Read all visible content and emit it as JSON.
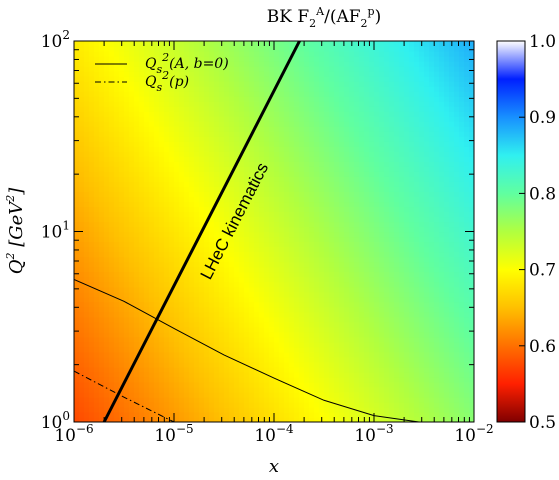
{
  "chart_data": {
    "type": "heatmap",
    "title": "BK F_2^A/(AF_2^p)",
    "xlabel": "x",
    "ylabel": "Q^2 [GeV^2]",
    "x_scale": "log",
    "y_scale": "log",
    "xlim": [
      1e-06,
      0.01
    ],
    "ylim": [
      1,
      100
    ],
    "x_ticks": [
      {
        "value": 1e-06,
        "label": "10^-6"
      },
      {
        "value": 1e-05,
        "label": "10^-5"
      },
      {
        "value": 0.0001,
        "label": "10^-4"
      },
      {
        "value": 0.001,
        "label": "10^-3"
      },
      {
        "value": 0.01,
        "label": "10^-2"
      }
    ],
    "y_ticks": [
      {
        "value": 1,
        "label": "10^0"
      },
      {
        "value": 10,
        "label": "10^1"
      },
      {
        "value": 100,
        "label": "10^2"
      }
    ],
    "colorbar": {
      "range": [
        0.5,
        1.0
      ],
      "ticks": [
        "0.5",
        "0.6",
        "0.7",
        "0.8",
        "0.9",
        "1.0"
      ],
      "colormap": "jet",
      "stops": [
        {
          "v": 0.5,
          "color": "#800000"
        },
        {
          "v": 0.55,
          "color": "#ff2000"
        },
        {
          "v": 0.6,
          "color": "#ff7000"
        },
        {
          "v": 0.65,
          "color": "#ffc000"
        },
        {
          "v": 0.7,
          "color": "#ffff00"
        },
        {
          "v": 0.75,
          "color": "#b0ff40"
        },
        {
          "v": 0.8,
          "color": "#60ffa0"
        },
        {
          "v": 0.85,
          "color": "#30f0f0"
        },
        {
          "v": 0.9,
          "color": "#1890ff"
        },
        {
          "v": 0.95,
          "color": "#0020ff"
        },
        {
          "v": 1.0,
          "color": "#ffffff"
        }
      ]
    },
    "field_model": {
      "base": 0.575,
      "log10x_coeff": 0.05,
      "log10q2_coeff": 0.055,
      "log10x_offset": 6
    },
    "series": [
      {
        "name": "Q_s^2(A, b=0)",
        "style": "solid",
        "points": [
          {
            "x": 1e-06,
            "y": 5.6
          },
          {
            "x": 3.16e-06,
            "y": 4.3
          },
          {
            "x": 1e-05,
            "y": 3.1
          },
          {
            "x": 3.16e-05,
            "y": 2.25
          },
          {
            "x": 0.0001,
            "y": 1.7
          },
          {
            "x": 0.000316,
            "y": 1.3
          },
          {
            "x": 0.001,
            "y": 1.08
          },
          {
            "x": 0.00282,
            "y": 1.0
          }
        ]
      },
      {
        "name": "Q_s^2(p)",
        "style": "dashdot",
        "points": [
          {
            "x": 1e-06,
            "y": 1.85
          },
          {
            "x": 3.16e-06,
            "y": 1.35
          },
          {
            "x": 1e-05,
            "y": 1.0
          }
        ]
      },
      {
        "name": "LHeC kinematics",
        "style": "thick",
        "points": [
          {
            "x": 2e-06,
            "y": 1.0
          },
          {
            "x": 0.00018,
            "y": 100
          }
        ]
      }
    ],
    "annotations": [
      {
        "text": "LHeC kinematics",
        "x": 4.5e-05,
        "y": 11
      }
    ],
    "legend_position": "top-left",
    "grid": false
  }
}
